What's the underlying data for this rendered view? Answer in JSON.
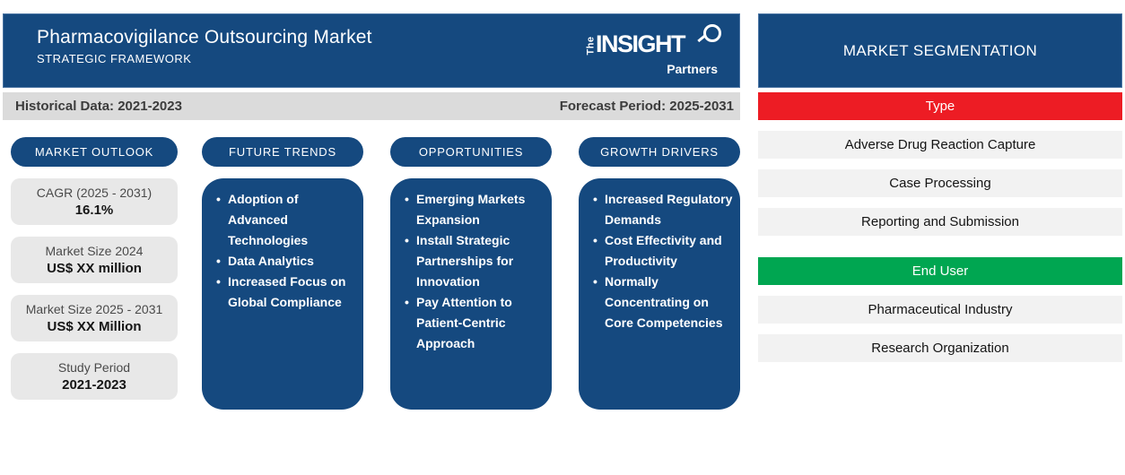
{
  "colors": {
    "brand_blue": "#15497F",
    "type_red": "#ED1C24",
    "end_user_green": "#00A651",
    "period_bar_gray": "#DBDBDB",
    "stat_box_gray": "#E8E8E8",
    "seg_item_gray": "#F2F2F2"
  },
  "header": {
    "title": "Pharmacovigilance Outsourcing Market",
    "subtitle": "STRATEGIC FRAMEWORK",
    "logo": {
      "the": "The",
      "insight": "INSIGHT",
      "partners": "Partners"
    }
  },
  "period_bar": {
    "historical": "Historical Data: 2021-2023",
    "forecast": "Forecast Period: 2025-2031"
  },
  "columns": {
    "market_outlook": {
      "title": "MARKET OUTLOOK",
      "stats": [
        {
          "label": "CAGR (2025 - 2031)",
          "value": "16.1%"
        },
        {
          "label": "Market Size 2024",
          "value": "US$ XX million"
        },
        {
          "label": "Market Size 2025 - 2031",
          "value": "US$ XX Million"
        },
        {
          "label": "Study Period",
          "value": "2021-2023"
        }
      ]
    },
    "future_trends": {
      "title": "FUTURE TRENDS",
      "items": [
        "Adoption of Advanced Technologies",
        "Data Analytics",
        "Increased Focus on Global Compliance"
      ]
    },
    "opportunities": {
      "title": "OPPORTUNITIES",
      "items": [
        "Emerging Markets Expansion",
        "Install Strategic Partnerships for Innovation",
        "Pay Attention to Patient-Centric Approach"
      ]
    },
    "growth_drivers": {
      "title": "GROWTH DRIVERS",
      "items": [
        "Increased Regulatory Demands",
        "Cost Effectivity and Productivity",
        "Normally Concentrating on Core Competencies"
      ]
    }
  },
  "segmentation": {
    "title": "MARKET SEGMENTATION",
    "groups": [
      {
        "label": "Type",
        "color": "#ED1C24",
        "items": [
          "Adverse Drug Reaction Capture",
          "Case Processing",
          "Reporting and Submission"
        ]
      },
      {
        "label": "End User",
        "color": "#00A651",
        "items": [
          "Pharmaceutical Industry",
          "Research Organization"
        ]
      }
    ]
  }
}
